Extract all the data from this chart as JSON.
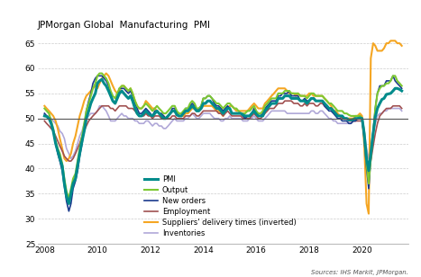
{
  "title": "JPMorgan Global  Manufacturing  PMI",
  "source_text": "Sources: IHS Markit, JPMorgan.",
  "ylim": [
    25,
    67
  ],
  "yticks": [
    25,
    30,
    35,
    40,
    45,
    50,
    55,
    60,
    65
  ],
  "xlim_start": 2007.75,
  "xlim_end": 2021.75,
  "xticks": [
    2008,
    2010,
    2012,
    2014,
    2016,
    2018,
    2020
  ],
  "hline_y": 50,
  "colors": {
    "PMI": "#008b8b",
    "Output": "#7dc832",
    "New orders": "#1a3a8c",
    "Employment": "#a05050",
    "Suppliers": "#f5a623",
    "Inventories": "#b0a8d8"
  },
  "linewidths": {
    "PMI": 2.2,
    "Output": 1.5,
    "New orders": 1.2,
    "Employment": 1.2,
    "Suppliers": 1.5,
    "Inventories": 1.2
  },
  "legend_labels": [
    "PMI",
    "Output",
    "New orders",
    "Employment",
    "Suppliers' delivery times (inverted)",
    "Inventories"
  ],
  "time_data": {
    "dates": [
      2008.0,
      2008.08,
      2008.17,
      2008.25,
      2008.33,
      2008.42,
      2008.5,
      2008.58,
      2008.67,
      2008.75,
      2008.83,
      2008.92,
      2009.0,
      2009.08,
      2009.17,
      2009.25,
      2009.33,
      2009.42,
      2009.5,
      2009.58,
      2009.67,
      2009.75,
      2009.83,
      2009.92,
      2010.0,
      2010.08,
      2010.17,
      2010.25,
      2010.33,
      2010.42,
      2010.5,
      2010.58,
      2010.67,
      2010.75,
      2010.83,
      2010.92,
      2011.0,
      2011.08,
      2011.17,
      2011.25,
      2011.33,
      2011.42,
      2011.5,
      2011.58,
      2011.67,
      2011.75,
      2011.83,
      2011.92,
      2012.0,
      2012.08,
      2012.17,
      2012.25,
      2012.33,
      2012.42,
      2012.5,
      2012.58,
      2012.67,
      2012.75,
      2012.83,
      2012.92,
      2013.0,
      2013.08,
      2013.17,
      2013.25,
      2013.33,
      2013.42,
      2013.5,
      2013.58,
      2013.67,
      2013.75,
      2013.83,
      2013.92,
      2014.0,
      2014.08,
      2014.17,
      2014.25,
      2014.33,
      2014.42,
      2014.5,
      2014.58,
      2014.67,
      2014.75,
      2014.83,
      2014.92,
      2015.0,
      2015.08,
      2015.17,
      2015.25,
      2015.33,
      2015.42,
      2015.5,
      2015.58,
      2015.67,
      2015.75,
      2015.83,
      2015.92,
      2016.0,
      2016.08,
      2016.17,
      2016.25,
      2016.33,
      2016.42,
      2016.5,
      2016.58,
      2016.67,
      2016.75,
      2016.83,
      2016.92,
      2017.0,
      2017.08,
      2017.17,
      2017.25,
      2017.33,
      2017.42,
      2017.5,
      2017.58,
      2017.67,
      2017.75,
      2017.83,
      2017.92,
      2018.0,
      2018.08,
      2018.17,
      2018.25,
      2018.33,
      2018.42,
      2018.5,
      2018.58,
      2018.67,
      2018.75,
      2018.83,
      2018.92,
      2019.0,
      2019.08,
      2019.17,
      2019.25,
      2019.33,
      2019.42,
      2019.5,
      2019.58,
      2019.67,
      2019.75,
      2019.83,
      2019.92,
      2020.0,
      2020.08,
      2020.17,
      2020.25,
      2020.33,
      2020.42,
      2020.5,
      2020.58,
      2020.67,
      2020.75,
      2020.83,
      2020.92,
      2021.0,
      2021.08,
      2021.17,
      2021.25,
      2021.33,
      2021.42,
      2021.5
    ],
    "PMI": [
      50.5,
      50.4,
      50.0,
      49.0,
      47.5,
      45.0,
      43.5,
      42.0,
      40.5,
      37.0,
      34.5,
      33.0,
      35.0,
      37.0,
      38.0,
      40.5,
      43.0,
      45.5,
      47.5,
      50.0,
      51.5,
      53.0,
      54.0,
      55.0,
      57.0,
      57.5,
      57.8,
      57.0,
      56.5,
      55.5,
      54.5,
      53.5,
      53.0,
      54.0,
      55.0,
      55.5,
      55.0,
      54.5,
      54.0,
      54.5,
      53.5,
      52.0,
      51.0,
      50.5,
      50.5,
      51.0,
      51.5,
      51.0,
      50.7,
      50.5,
      51.0,
      51.5,
      51.0,
      50.5,
      50.0,
      50.0,
      50.5,
      51.0,
      51.5,
      51.5,
      50.7,
      50.5,
      50.5,
      51.0,
      51.5,
      51.5,
      52.0,
      52.5,
      52.0,
      51.5,
      51.5,
      52.0,
      53.0,
      53.0,
      53.5,
      53.5,
      53.0,
      52.5,
      52.0,
      52.0,
      51.5,
      51.0,
      51.5,
      52.0,
      52.0,
      51.0,
      51.0,
      51.0,
      51.0,
      51.0,
      50.7,
      50.5,
      50.5,
      50.5,
      51.0,
      51.5,
      50.9,
      50.5,
      50.5,
      50.5,
      51.5,
      52.0,
      52.5,
      53.0,
      53.0,
      53.0,
      54.0,
      54.0,
      54.0,
      54.5,
      54.5,
      54.5,
      54.0,
      54.0,
      54.0,
      54.0,
      53.5,
      53.5,
      53.5,
      53.0,
      53.5,
      54.0,
      54.0,
      53.5,
      53.5,
      53.5,
      53.5,
      53.0,
      52.5,
      52.0,
      52.0,
      51.5,
      51.0,
      50.5,
      50.5,
      50.5,
      50.0,
      50.0,
      49.7,
      49.7,
      49.8,
      50.0,
      50.0,
      50.1,
      50.0,
      47.0,
      42.0,
      39.6,
      43.0,
      47.0,
      50.3,
      52.0,
      53.0,
      53.8,
      54.0,
      54.8,
      54.9,
      55.0,
      55.5,
      56.0,
      56.0,
      55.8,
      55.5
    ],
    "Output": [
      52.0,
      51.5,
      51.0,
      49.5,
      48.0,
      45.5,
      44.0,
      43.0,
      41.0,
      38.0,
      35.5,
      34.0,
      36.0,
      38.0,
      39.0,
      41.5,
      44.0,
      46.5,
      49.0,
      51.5,
      53.0,
      54.5,
      56.0,
      57.0,
      58.5,
      59.0,
      59.0,
      58.5,
      58.0,
      57.0,
      55.5,
      54.5,
      54.0,
      55.0,
      56.0,
      56.5,
      56.5,
      56.0,
      55.5,
      56.0,
      55.0,
      53.5,
      52.5,
      52.0,
      52.0,
      52.5,
      53.0,
      52.5,
      52.0,
      51.5,
      52.0,
      52.5,
      52.0,
      51.5,
      51.0,
      51.0,
      51.5,
      52.0,
      52.5,
      52.5,
      51.5,
      51.0,
      51.0,
      51.5,
      52.0,
      52.0,
      53.0,
      53.5,
      53.0,
      52.0,
      52.0,
      52.5,
      54.0,
      54.0,
      54.5,
      54.5,
      54.0,
      53.5,
      53.0,
      53.0,
      52.5,
      52.0,
      52.5,
      53.0,
      53.0,
      52.5,
      52.0,
      52.0,
      51.5,
      51.0,
      51.0,
      51.0,
      51.5,
      51.5,
      52.0,
      52.5,
      51.5,
      51.0,
      51.0,
      51.5,
      52.5,
      53.0,
      53.5,
      54.0,
      54.0,
      54.0,
      55.0,
      55.0,
      55.0,
      55.5,
      55.5,
      55.5,
      55.0,
      55.0,
      55.0,
      55.0,
      54.5,
      54.5,
      54.5,
      54.0,
      54.5,
      55.0,
      55.0,
      54.5,
      54.5,
      54.5,
      54.5,
      54.0,
      53.5,
      53.0,
      53.0,
      52.5,
      52.0,
      51.5,
      51.5,
      51.5,
      51.0,
      51.0,
      50.7,
      50.5,
      50.5,
      50.5,
      50.5,
      50.5,
      50.0,
      47.5,
      41.0,
      37.0,
      42.0,
      47.0,
      52.0,
      55.0,
      56.0,
      56.5,
      56.5,
      57.0,
      57.0,
      57.5,
      58.5,
      58.5,
      57.5,
      57.0,
      56.5
    ],
    "New_orders": [
      51.0,
      50.5,
      50.0,
      49.0,
      47.5,
      45.0,
      43.0,
      41.5,
      39.5,
      36.5,
      33.5,
      31.5,
      33.0,
      36.0,
      37.5,
      39.5,
      42.5,
      45.0,
      48.0,
      51.5,
      53.5,
      55.0,
      57.0,
      58.0,
      58.5,
      58.5,
      58.5,
      58.0,
      57.5,
      56.5,
      55.0,
      53.5,
      53.0,
      54.5,
      56.0,
      56.0,
      56.0,
      55.5,
      55.0,
      55.5,
      54.5,
      53.0,
      52.0,
      51.0,
      51.0,
      51.5,
      52.0,
      51.5,
      51.0,
      50.5,
      51.5,
      51.5,
      51.0,
      51.0,
      50.5,
      50.0,
      50.5,
      51.0,
      52.0,
      52.0,
      51.0,
      50.5,
      50.5,
      51.0,
      52.0,
      52.0,
      52.5,
      53.0,
      52.5,
      51.5,
      52.0,
      52.5,
      54.0,
      54.0,
      54.5,
      54.5,
      54.0,
      53.0,
      52.5,
      52.5,
      52.0,
      51.5,
      52.0,
      52.5,
      52.0,
      51.0,
      51.0,
      51.0,
      51.0,
      51.0,
      50.5,
      50.0,
      50.5,
      50.5,
      51.0,
      52.0,
      51.0,
      50.5,
      50.5,
      51.0,
      52.0,
      52.5,
      53.0,
      53.5,
      53.5,
      53.5,
      54.5,
      54.5,
      55.0,
      55.0,
      55.0,
      55.5,
      54.5,
      54.5,
      54.5,
      54.5,
      53.5,
      53.5,
      54.0,
      53.5,
      53.5,
      54.0,
      54.0,
      53.5,
      53.5,
      53.5,
      53.5,
      52.5,
      52.0,
      51.5,
      51.5,
      51.0,
      50.5,
      50.0,
      50.0,
      49.5,
      49.5,
      49.5,
      49.0,
      49.0,
      49.5,
      49.5,
      50.0,
      50.5,
      50.0,
      46.0,
      40.0,
      36.0,
      42.0,
      47.5,
      52.0,
      55.0,
      56.5,
      56.5,
      56.5,
      57.5,
      57.5,
      57.5,
      58.5,
      57.5,
      57.0,
      56.5,
      56.0
    ],
    "Employment": [
      49.5,
      49.0,
      48.5,
      48.0,
      47.5,
      46.5,
      45.5,
      44.5,
      43.5,
      42.5,
      42.0,
      41.5,
      41.5,
      42.0,
      43.0,
      44.0,
      45.0,
      46.5,
      47.5,
      48.5,
      49.5,
      50.0,
      50.5,
      51.0,
      51.5,
      52.0,
      52.5,
      52.5,
      52.5,
      52.5,
      52.0,
      52.0,
      51.5,
      52.0,
      52.5,
      52.5,
      52.5,
      52.5,
      52.0,
      52.0,
      52.0,
      51.5,
      51.0,
      50.5,
      50.5,
      50.5,
      51.0,
      50.5,
      50.5,
      50.0,
      50.5,
      50.5,
      50.5,
      50.0,
      50.0,
      50.0,
      50.0,
      50.0,
      50.5,
      50.5,
      50.0,
      50.0,
      50.0,
      50.0,
      50.5,
      50.5,
      50.5,
      51.0,
      51.0,
      50.5,
      50.5,
      51.0,
      51.5,
      51.5,
      51.5,
      51.5,
      51.5,
      51.5,
      51.5,
      51.0,
      51.0,
      50.5,
      51.0,
      51.5,
      51.0,
      50.5,
      50.5,
      50.5,
      50.5,
      50.5,
      50.0,
      50.0,
      50.0,
      50.0,
      50.5,
      51.0,
      50.5,
      50.0,
      50.0,
      50.5,
      51.0,
      51.5,
      52.0,
      52.0,
      52.0,
      52.5,
      53.0,
      53.0,
      53.0,
      53.5,
      53.5,
      53.5,
      53.5,
      53.0,
      53.0,
      53.0,
      52.5,
      52.5,
      53.0,
      52.5,
      53.0,
      53.0,
      53.0,
      52.5,
      52.5,
      53.0,
      53.0,
      52.5,
      52.0,
      52.0,
      52.0,
      51.5,
      51.0,
      50.5,
      50.5,
      50.0,
      50.0,
      50.0,
      49.5,
      49.5,
      49.5,
      49.5,
      49.5,
      49.5,
      49.5,
      46.5,
      42.0,
      39.0,
      41.5,
      44.5,
      47.0,
      49.0,
      50.5,
      51.0,
      51.5,
      52.0,
      52.0,
      52.0,
      52.5,
      52.5,
      52.5,
      52.5,
      52.0
    ],
    "Suppliers": [
      52.5,
      52.0,
      51.5,
      51.0,
      50.5,
      49.5,
      48.0,
      46.0,
      44.0,
      42.0,
      41.5,
      42.0,
      43.0,
      45.0,
      46.5,
      48.5,
      50.5,
      52.0,
      53.5,
      54.5,
      55.0,
      55.5,
      56.0,
      56.5,
      56.0,
      57.0,
      58.0,
      58.5,
      59.0,
      58.5,
      57.5,
      56.5,
      55.5,
      55.0,
      55.5,
      56.5,
      56.5,
      56.0,
      55.5,
      56.0,
      55.0,
      53.5,
      52.5,
      52.0,
      52.0,
      52.5,
      53.5,
      53.0,
      52.5,
      52.0,
      52.0,
      51.5,
      51.0,
      50.5,
      50.5,
      50.0,
      50.5,
      51.0,
      51.5,
      51.5,
      51.0,
      50.5,
      50.5,
      50.5,
      51.0,
      51.0,
      51.5,
      52.0,
      52.0,
      51.5,
      51.5,
      52.0,
      52.5,
      52.5,
      52.5,
      52.5,
      52.5,
      52.0,
      51.5,
      51.5,
      51.0,
      50.5,
      51.5,
      52.0,
      52.5,
      52.5,
      52.0,
      51.5,
      51.5,
      51.5,
      51.5,
      51.5,
      51.5,
      52.0,
      52.5,
      53.0,
      52.5,
      52.0,
      52.0,
      52.0,
      53.0,
      53.5,
      54.0,
      54.5,
      55.0,
      55.5,
      56.0,
      56.0,
      56.0,
      56.0,
      55.5,
      55.0,
      55.0,
      55.0,
      54.5,
      55.0,
      54.5,
      54.5,
      54.5,
      54.5,
      55.0,
      55.0,
      54.5,
      54.5,
      54.5,
      54.5,
      54.5,
      54.0,
      53.5,
      53.0,
      52.5,
      51.5,
      51.5,
      51.0,
      50.5,
      50.0,
      50.0,
      50.0,
      50.0,
      50.0,
      50.0,
      50.5,
      50.5,
      51.0,
      50.5,
      45.0,
      33.0,
      31.0,
      62.0,
      65.0,
      64.5,
      63.5,
      63.5,
      63.5,
      64.0,
      65.0,
      65.0,
      65.5,
      65.5,
      65.5,
      65.0,
      65.0,
      64.5
    ],
    "Inventories": [
      51.0,
      50.5,
      50.5,
      50.0,
      49.5,
      49.0,
      48.5,
      47.5,
      47.0,
      46.0,
      44.0,
      43.0,
      42.0,
      42.5,
      43.5,
      45.0,
      46.5,
      47.5,
      49.0,
      50.0,
      50.5,
      51.0,
      51.0,
      51.0,
      51.5,
      52.5,
      52.5,
      52.0,
      51.5,
      50.5,
      49.5,
      49.5,
      49.5,
      50.0,
      50.5,
      51.0,
      50.5,
      50.5,
      50.0,
      50.0,
      50.0,
      49.5,
      49.5,
      49.0,
      49.0,
      49.0,
      49.5,
      49.5,
      49.0,
      48.5,
      49.0,
      49.0,
      48.5,
      48.5,
      48.0,
      48.0,
      48.5,
      49.0,
      49.5,
      50.0,
      49.5,
      49.5,
      49.5,
      49.5,
      50.0,
      50.0,
      50.5,
      51.0,
      50.5,
      50.0,
      50.0,
      50.5,
      51.0,
      51.0,
      51.0,
      51.0,
      50.5,
      50.0,
      50.0,
      50.0,
      49.5,
      49.5,
      50.0,
      50.0,
      50.5,
      50.0,
      50.0,
      50.0,
      50.0,
      50.0,
      49.5,
      49.5,
      49.5,
      50.0,
      50.0,
      50.5,
      50.0,
      49.5,
      49.5,
      49.5,
      50.0,
      50.5,
      51.0,
      51.5,
      51.5,
      51.5,
      51.5,
      51.5,
      51.5,
      51.5,
      51.0,
      51.0,
      51.0,
      51.0,
      51.0,
      51.0,
      51.0,
      51.0,
      51.0,
      51.0,
      51.0,
      51.5,
      51.5,
      51.0,
      51.0,
      51.5,
      51.5,
      51.0,
      50.5,
      50.0,
      50.0,
      49.5,
      49.5,
      49.0,
      49.0,
      49.0,
      49.0,
      49.0,
      49.0,
      49.0,
      49.5,
      49.5,
      50.0,
      50.0,
      50.0,
      47.5,
      44.0,
      42.0,
      44.5,
      47.5,
      49.0,
      50.5,
      51.0,
      51.0,
      51.5,
      51.5,
      52.0,
      52.0,
      52.0,
      52.0,
      52.0,
      52.0,
      51.5
    ]
  }
}
